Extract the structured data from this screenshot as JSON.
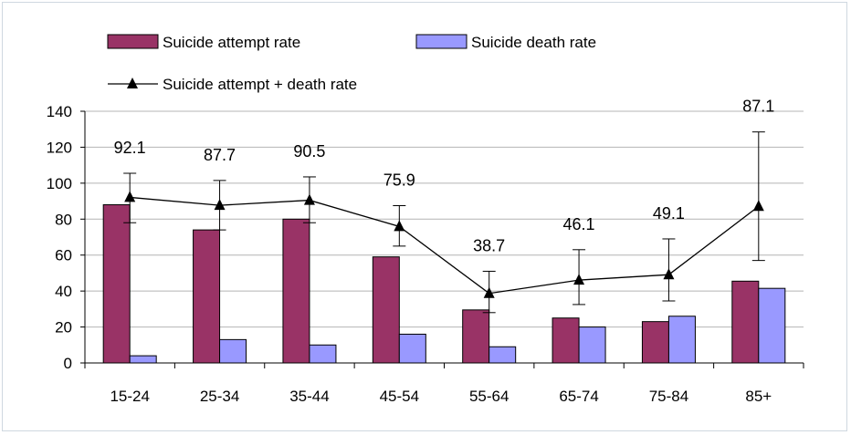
{
  "chart_data": {
    "type": "bar",
    "title": "",
    "xlabel": "",
    "ylabel": "",
    "categories": [
      "15-24",
      "25-34",
      "35-44",
      "45-54",
      "55-64",
      "65-74",
      "75-84",
      "85+"
    ],
    "ylim": [
      0,
      140
    ],
    "yticks": [
      0,
      20,
      40,
      60,
      80,
      100,
      120,
      140
    ],
    "grid": true,
    "legend_position": "top",
    "series": [
      {
        "name": "Suicide attempt rate",
        "kind": "bar",
        "color": "#993366",
        "values": [
          88,
          74,
          80,
          59,
          29.5,
          25,
          23,
          45.5
        ]
      },
      {
        "name": "Suicide death rate",
        "kind": "bar",
        "color": "#9999ff",
        "values": [
          4,
          13,
          10,
          16,
          9,
          20,
          26,
          41.5
        ]
      },
      {
        "name": "Suicide attempt + death rate",
        "kind": "line",
        "marker": "triangle",
        "color": "#000000",
        "values": [
          92.1,
          87.7,
          90.5,
          75.9,
          38.7,
          46.1,
          49.1,
          87.1
        ],
        "error_low": [
          78,
          74,
          78,
          65,
          28,
          32.5,
          34.5,
          57
        ],
        "error_high": [
          105.5,
          101.5,
          103.5,
          87.5,
          51,
          63,
          69,
          128.5
        ],
        "data_labels": [
          "92.1",
          "87.7",
          "90.5",
          "75.9",
          "38.7",
          "46.1",
          "49.1",
          "87.1"
        ]
      }
    ]
  }
}
